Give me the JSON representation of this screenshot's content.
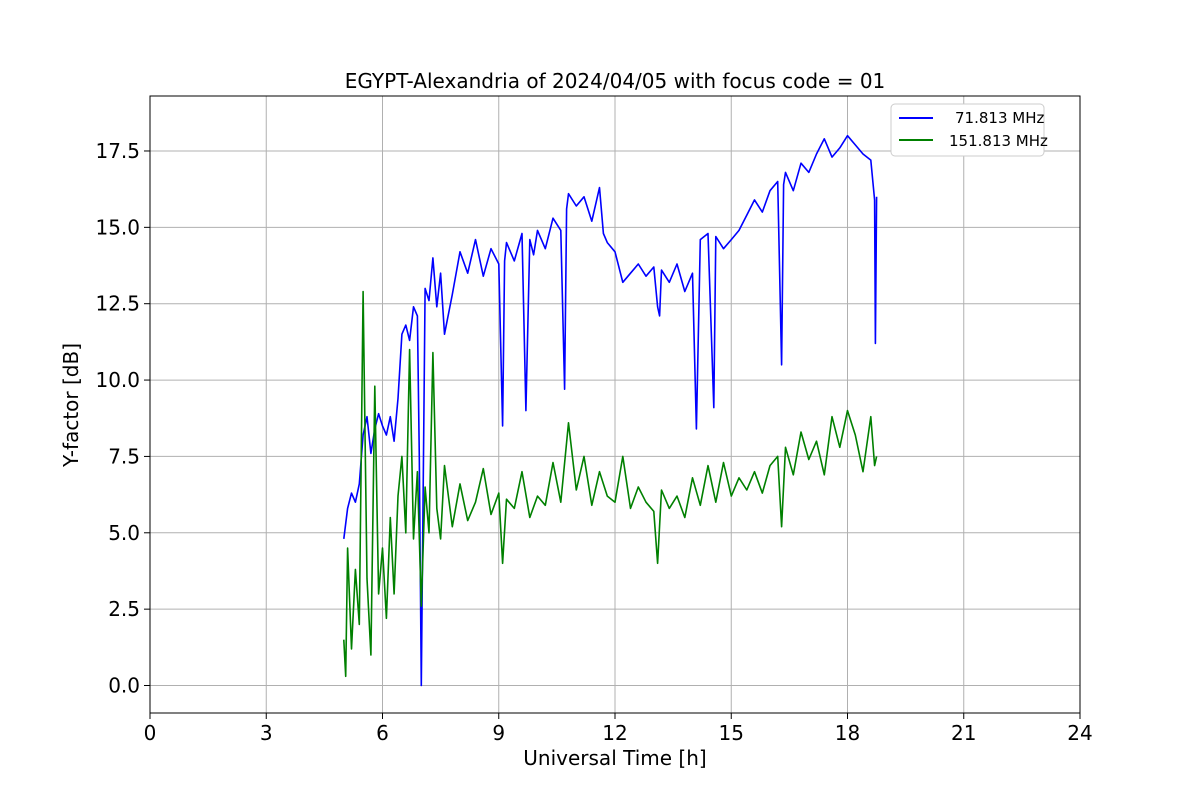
{
  "chart_data": {
    "type": "line",
    "title": "EGYPT-Alexandria of 2024/04/05 with focus code = 01",
    "xlabel": "Universal Time [h]",
    "ylabel": "Y-factor [dB]",
    "xlim": [
      0,
      24
    ],
    "ylim": [
      -0.9,
      19.3
    ],
    "xticks": [
      0,
      3,
      6,
      9,
      12,
      15,
      18,
      21,
      24
    ],
    "yticks": [
      "0.0",
      "2.5",
      "5.0",
      "7.5",
      "10.0",
      "12.5",
      "15.0",
      "17.5"
    ],
    "grid": true,
    "legend_position": "top-right",
    "series": [
      {
        "name": "71.813 MHz",
        "color": "#0000ff",
        "x": [
          5.0,
          5.05,
          5.1,
          5.2,
          5.3,
          5.4,
          5.5,
          5.6,
          5.7,
          5.8,
          5.9,
          6.0,
          6.1,
          6.2,
          6.3,
          6.4,
          6.5,
          6.6,
          6.7,
          6.8,
          6.9,
          6.95,
          7.0,
          7.1,
          7.2,
          7.3,
          7.4,
          7.5,
          7.6,
          7.8,
          8.0,
          8.2,
          8.4,
          8.6,
          8.8,
          9.0,
          9.1,
          9.15,
          9.2,
          9.4,
          9.6,
          9.7,
          9.8,
          9.9,
          10.0,
          10.2,
          10.4,
          10.6,
          10.7,
          10.75,
          10.8,
          11.0,
          11.2,
          11.4,
          11.6,
          11.7,
          11.8,
          12.0,
          12.2,
          12.4,
          12.6,
          12.8,
          13.0,
          13.1,
          13.15,
          13.2,
          13.4,
          13.6,
          13.8,
          14.0,
          14.1,
          14.2,
          14.4,
          14.55,
          14.6,
          14.8,
          15.0,
          15.2,
          15.4,
          15.6,
          15.8,
          16.0,
          16.2,
          16.3,
          16.35,
          16.4,
          16.6,
          16.8,
          17.0,
          17.2,
          17.4,
          17.6,
          17.8,
          18.0,
          18.2,
          18.4,
          18.6,
          18.7,
          18.72,
          18.75
        ],
        "y": [
          4.8,
          5.3,
          5.8,
          6.3,
          6.0,
          6.6,
          8.2,
          8.8,
          7.6,
          8.4,
          8.9,
          8.5,
          8.2,
          8.8,
          8.0,
          9.4,
          11.5,
          11.8,
          11.3,
          12.4,
          12.1,
          7.5,
          0.0,
          13.0,
          12.6,
          14.0,
          12.4,
          13.5,
          11.5,
          12.8,
          14.2,
          13.5,
          14.6,
          13.4,
          14.3,
          13.8,
          8.5,
          13.9,
          14.5,
          13.9,
          14.8,
          9.0,
          14.6,
          14.1,
          14.9,
          14.3,
          15.3,
          14.9,
          9.7,
          15.6,
          16.1,
          15.7,
          16.0,
          15.2,
          16.3,
          14.8,
          14.5,
          14.2,
          13.2,
          13.5,
          13.8,
          13.4,
          13.7,
          12.4,
          12.1,
          13.6,
          13.2,
          13.8,
          12.9,
          13.5,
          8.4,
          14.6,
          14.8,
          9.1,
          14.7,
          14.3,
          14.6,
          14.9,
          15.4,
          15.9,
          15.5,
          16.2,
          16.5,
          10.5,
          16.4,
          16.8,
          16.2,
          17.1,
          16.8,
          17.4,
          17.9,
          17.3,
          17.6,
          18.0,
          17.7,
          17.4,
          17.2,
          15.9,
          11.2,
          16.0
        ]
      },
      {
        "name": "151.813 MHz",
        "color": "#008000",
        "x": [
          5.0,
          5.05,
          5.1,
          5.2,
          5.3,
          5.4,
          5.5,
          5.6,
          5.7,
          5.8,
          5.9,
          6.0,
          6.1,
          6.2,
          6.3,
          6.4,
          6.5,
          6.6,
          6.7,
          6.8,
          6.9,
          7.0,
          7.1,
          7.2,
          7.3,
          7.4,
          7.5,
          7.6,
          7.8,
          8.0,
          8.2,
          8.4,
          8.6,
          8.8,
          9.0,
          9.1,
          9.2,
          9.4,
          9.6,
          9.8,
          10.0,
          10.2,
          10.4,
          10.6,
          10.8,
          11.0,
          11.2,
          11.4,
          11.6,
          11.8,
          12.0,
          12.2,
          12.4,
          12.6,
          12.8,
          13.0,
          13.1,
          13.2,
          13.4,
          13.6,
          13.8,
          14.0,
          14.2,
          14.4,
          14.6,
          14.8,
          15.0,
          15.2,
          15.4,
          15.6,
          15.8,
          16.0,
          16.2,
          16.3,
          16.4,
          16.6,
          16.8,
          17.0,
          17.2,
          17.4,
          17.6,
          17.8,
          18.0,
          18.2,
          18.4,
          18.6,
          18.7,
          18.75
        ],
        "y": [
          1.5,
          0.3,
          4.5,
          1.2,
          3.8,
          2.0,
          12.9,
          3.5,
          1.0,
          9.8,
          3.0,
          4.5,
          2.2,
          5.5,
          3.0,
          6.2,
          7.5,
          5.0,
          11.0,
          4.8,
          7.0,
          2.6,
          6.5,
          5.0,
          10.9,
          5.8,
          4.8,
          7.2,
          5.2,
          6.6,
          5.4,
          6.0,
          7.1,
          5.6,
          6.3,
          4.0,
          6.1,
          5.8,
          7.0,
          5.5,
          6.2,
          5.9,
          7.3,
          6.0,
          8.6,
          6.4,
          7.5,
          5.9,
          7.0,
          6.2,
          6.0,
          7.5,
          5.8,
          6.5,
          6.0,
          5.7,
          4.0,
          6.4,
          5.8,
          6.2,
          5.5,
          6.8,
          5.9,
          7.2,
          6.0,
          7.3,
          6.2,
          6.8,
          6.4,
          7.0,
          6.3,
          7.2,
          7.5,
          5.2,
          7.8,
          6.9,
          8.3,
          7.4,
          8.0,
          6.9,
          8.8,
          7.8,
          9.0,
          8.2,
          7.0,
          8.8,
          7.2,
          7.5
        ]
      }
    ]
  }
}
